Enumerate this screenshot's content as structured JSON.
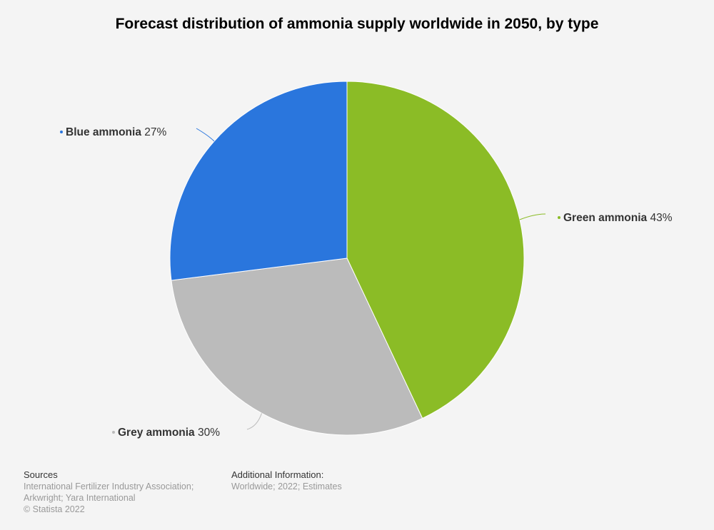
{
  "header": {
    "title": "Forecast distribution of ammonia supply worldwide in 2050, by type"
  },
  "chart_data": {
    "type": "pie",
    "title": "Forecast distribution of ammonia supply worldwide in 2050, by type",
    "slices": [
      {
        "name": "Green ammonia",
        "value": 43,
        "display": "43%",
        "color": "#8bbc26"
      },
      {
        "name": "Grey ammonia",
        "value": 30,
        "display": "30%",
        "color": "#bbbbbb"
      },
      {
        "name": "Blue ammonia",
        "value": 27,
        "display": "27%",
        "color": "#2a76dd"
      }
    ],
    "start_angle_deg": 0,
    "direction": "clockwise",
    "legend": "none"
  },
  "footer": {
    "sources_heading": "Sources",
    "sources_line1": "International Fertilizer Industry Association;",
    "sources_line2": "Arkwright; Yara International",
    "copyright": "© Statista 2022",
    "additional_heading": "Additional Information:",
    "additional_text": "Worldwide; 2022; Estimates"
  }
}
